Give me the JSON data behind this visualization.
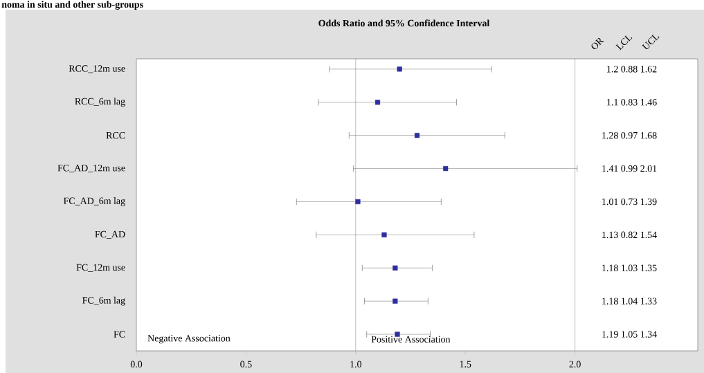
{
  "chart_data": {
    "type": "scatter",
    "orientation": "horizontal",
    "title": "Odds Ratio and 95% Confidence Interval",
    "annotations": [
      "noma in situ and other sub-groups",
      "OR",
      "LCL",
      "UCL",
      "Negative Association",
      "Positive Association",
      "1.2 0.88 1.62",
      "1.1 0.83 1.46",
      "1.28 0.97 1.68",
      "1.41 0.99 2.01",
      "1.01 0.73 1.39",
      "1.13 0.82 1.54",
      "1.18 1.03 1.35",
      "1.18 1.04 1.33",
      "1.19 1.05 1.34"
    ],
    "categories": [
      "RCC_12m use",
      "RCC_6m lag",
      "RCC",
      "FC_AD_12m use",
      "FC_AD_6m lag",
      "FC_AD",
      "FC_12m use",
      "FC_6m lag",
      "FC"
    ],
    "series": [
      {
        "color": "#2e2e9e",
        "values": [
          1.2,
          1.1,
          1.28,
          1.41,
          1.01,
          1.13,
          1.18,
          1.18,
          1.19
        ],
        "errors": [
          [
            0.88,
            1.62
          ],
          [
            0.83,
            1.46
          ],
          [
            0.97,
            1.68
          ],
          [
            0.99,
            2.01
          ],
          [
            0.73,
            1.39
          ],
          [
            0.82,
            1.54
          ],
          [
            1.03,
            1.35
          ],
          [
            1.04,
            1.33
          ],
          [
            1.05,
            1.34
          ]
        ]
      }
    ],
    "marker": "square",
    "xlim": [
      0,
      2.56
    ],
    "xticks": [
      {
        "value": 0,
        "label": "0.0"
      },
      {
        "value": 0.5,
        "label": "0.5"
      },
      {
        "value": 1,
        "label": "1.0"
      },
      {
        "value": 1.5,
        "label": "1.5"
      },
      {
        "value": 2,
        "label": "2.0"
      }
    ],
    "ref_lines": [
      {
        "axis": "x",
        "value": 1,
        "color": "#808080"
      },
      {
        "axis": "x",
        "value": 2,
        "color": "#808080"
      }
    ]
  }
}
